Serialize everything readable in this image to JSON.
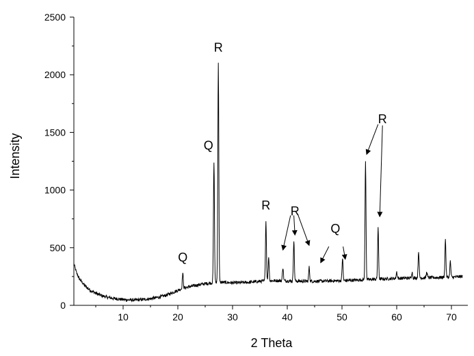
{
  "chart_data": {
    "type": "line",
    "title": "",
    "xlabel": "2 Theta",
    "ylabel": "Intensity",
    "xlim": [
      1,
      73
    ],
    "ylim": [
      0,
      2500
    ],
    "x_ticks": [
      10,
      20,
      30,
      40,
      50,
      60,
      70
    ],
    "y_ticks": [
      0,
      500,
      1000,
      1500,
      2000,
      2500
    ],
    "x_tick_labels": [
      "10",
      "20",
      "30",
      "40",
      "50",
      "60",
      "70"
    ],
    "y_tick_labels": [
      "0",
      "500",
      "1000",
      "1500",
      "2000",
      "2500"
    ],
    "grid": false,
    "legend": "none",
    "line_color": "#000000",
    "baseline": [
      [
        1.0,
        360
      ],
      [
        1.5,
        280
      ],
      [
        2.0,
        230
      ],
      [
        3.0,
        170
      ],
      [
        4.0,
        130
      ],
      [
        5.0,
        105
      ],
      [
        6.0,
        85
      ],
      [
        7.0,
        72
      ],
      [
        8.0,
        62
      ],
      [
        9.0,
        56
      ],
      [
        10.0,
        50
      ],
      [
        11.0,
        47
      ],
      [
        12.0,
        46
      ],
      [
        13.0,
        48
      ],
      [
        14.0,
        52
      ],
      [
        15.0,
        58
      ],
      [
        16.0,
        66
      ],
      [
        17.0,
        76
      ],
      [
        18.0,
        90
      ],
      [
        19.0,
        110
      ],
      [
        20.0,
        130
      ],
      [
        21.0,
        148
      ],
      [
        22.0,
        160
      ],
      [
        23.0,
        170
      ],
      [
        24.0,
        180
      ],
      [
        25.0,
        188
      ],
      [
        26.0,
        194
      ],
      [
        27.0,
        198
      ],
      [
        28.0,
        200
      ],
      [
        29.0,
        198
      ],
      [
        30.0,
        196
      ],
      [
        31.0,
        196
      ],
      [
        32.0,
        198
      ],
      [
        33.0,
        200
      ],
      [
        34.0,
        204
      ],
      [
        35.0,
        208
      ],
      [
        36.0,
        212
      ],
      [
        38.0,
        214
      ],
      [
        40.0,
        212
      ],
      [
        42.0,
        210
      ],
      [
        44.0,
        208
      ],
      [
        46.0,
        210
      ],
      [
        48.0,
        212
      ],
      [
        50.0,
        214
      ],
      [
        52.0,
        218
      ],
      [
        54.0,
        222
      ],
      [
        56.0,
        226
      ],
      [
        58.0,
        230
      ],
      [
        60.0,
        234
      ],
      [
        62.0,
        236
      ],
      [
        64.0,
        238
      ],
      [
        66.0,
        240
      ],
      [
        68.0,
        242
      ],
      [
        70.0,
        244
      ],
      [
        72.0,
        250
      ]
    ],
    "peaks": [
      {
        "x": 20.9,
        "y": 280
      },
      {
        "x": 26.6,
        "y": 1250
      },
      {
        "x": 27.4,
        "y": 2095
      },
      {
        "x": 36.1,
        "y": 730
      },
      {
        "x": 36.6,
        "y": 420
      },
      {
        "x": 39.2,
        "y": 330
      },
      {
        "x": 41.2,
        "y": 560
      },
      {
        "x": 44.0,
        "y": 330
      },
      {
        "x": 50.1,
        "y": 410
      },
      {
        "x": 54.3,
        "y": 1245
      },
      {
        "x": 56.6,
        "y": 665
      },
      {
        "x": 60.0,
        "y": 290
      },
      {
        "x": 62.8,
        "y": 290
      },
      {
        "x": 64.0,
        "y": 470
      },
      {
        "x": 65.5,
        "y": 290
      },
      {
        "x": 68.9,
        "y": 570
      },
      {
        "x": 69.8,
        "y": 380
      }
    ],
    "annotations": [
      {
        "text": "Q",
        "x": 20.9,
        "y": 380,
        "arrows": []
      },
      {
        "text": "Q",
        "x": 25.6,
        "y": 1350,
        "arrows": []
      },
      {
        "text": "R",
        "x": 27.4,
        "y": 2200,
        "arrows": []
      },
      {
        "text": "R",
        "x": 36.1,
        "y": 830,
        "arrows": []
      },
      {
        "text": "R",
        "x": 41.4,
        "y": 780,
        "arrows": [
          {
            "from": [
              40.6,
              780
            ],
            "to": [
              39.2,
              480
            ]
          },
          {
            "from": [
              41.2,
              780
            ],
            "to": [
              41.4,
              610
            ]
          },
          {
            "from": [
              42.0,
              780
            ],
            "to": [
              44.0,
              520
            ]
          }
        ]
      },
      {
        "text": "Q",
        "x": 48.8,
        "y": 630,
        "arrows": [
          {
            "from": [
              47.6,
              510
            ],
            "to": [
              46.1,
              370
            ]
          },
          {
            "from": [
              50.2,
              510
            ],
            "to": [
              50.6,
              400
            ]
          }
        ]
      },
      {
        "text": "R",
        "x": 57.4,
        "y": 1580,
        "arrows": [
          {
            "from": [
              56.6,
              1570
            ],
            "to": [
              54.5,
              1310
            ]
          },
          {
            "from": [
              57.4,
              1560
            ],
            "to": [
              56.9,
              770
            ]
          }
        ]
      }
    ]
  }
}
